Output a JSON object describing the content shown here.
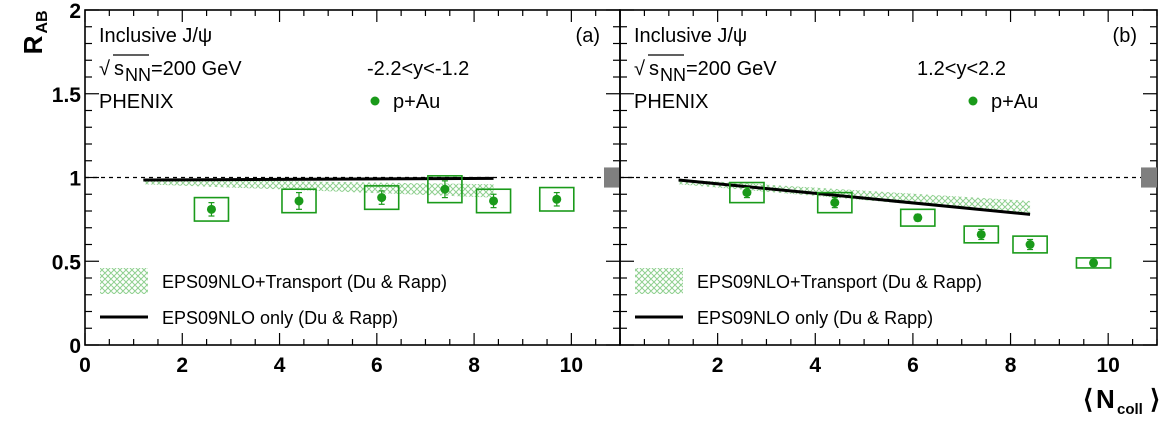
{
  "y_axis": {
    "label_main": "R",
    "label_sub": "AB"
  },
  "x_axis": {
    "label_main": "N",
    "label_sub": "coll"
  },
  "colors": {
    "data": "#1a9a1a",
    "band": "#8fd08f",
    "model": "#000000",
    "dashed": "#000000",
    "norm_box": "#7f7f7f"
  },
  "chart_data": [
    {
      "type": "scatter",
      "panel_tag": "(a)",
      "annotations": {
        "line1": "Inclusive J/ψ",
        "sqrt_symbol": "√",
        "energy_s": "s",
        "energy_sub": "NN",
        "energy_value": "=200 GeV",
        "experiment": "PHENIX",
        "rapidity": "-2.2<y<-1.2"
      },
      "xlim": [
        0,
        11
      ],
      "ylim": [
        0,
        2
      ],
      "x_ticks": [
        "0",
        "2",
        "4",
        "6",
        "8",
        "10"
      ],
      "y_ticks": [
        "0",
        "0.5",
        "1",
        "1.5",
        "2"
      ],
      "reference_line_y": 1.0,
      "global_uncertainty": [
        0.94,
        1.06
      ],
      "series": [
        {
          "name": "p+Au",
          "points": [
            {
              "x": 2.6,
              "y": 0.81,
              "stat": 0.04,
              "sys_x": 0.35,
              "sys_y": 0.07
            },
            {
              "x": 4.4,
              "y": 0.86,
              "stat": 0.05,
              "sys_x": 0.35,
              "sys_y": 0.07
            },
            {
              "x": 6.1,
              "y": 0.88,
              "stat": 0.04,
              "sys_x": 0.35,
              "sys_y": 0.07
            },
            {
              "x": 7.4,
              "y": 0.93,
              "stat": 0.05,
              "sys_x": 0.35,
              "sys_y": 0.08
            },
            {
              "x": 8.4,
              "y": 0.86,
              "stat": 0.04,
              "sys_x": 0.35,
              "sys_y": 0.07
            },
            {
              "x": 9.7,
              "y": 0.87,
              "stat": 0.04,
              "sys_x": 0.35,
              "sys_y": 0.07
            }
          ]
        }
      ],
      "models": [
        {
          "name": "EPS09NLO+Transport (Du & Rapp)",
          "kind": "band",
          "x": [
            1.2,
            8.4
          ],
          "y_low": [
            0.96,
            0.88
          ],
          "y_high": [
            0.99,
            0.96
          ]
        },
        {
          "name": "EPS09NLO only (Du & Rapp)",
          "kind": "line",
          "x": [
            1.2,
            8.4
          ],
          "y": [
            0.985,
            0.995
          ]
        }
      ]
    },
    {
      "type": "scatter",
      "panel_tag": "(b)",
      "annotations": {
        "line1": "Inclusive J/ψ",
        "sqrt_symbol": "√",
        "energy_s": "s",
        "energy_sub": "NN",
        "energy_value": "=200 GeV",
        "experiment": "PHENIX",
        "rapidity": "1.2<y<2.2"
      },
      "xlim": [
        0,
        11
      ],
      "ylim": [
        0,
        2
      ],
      "x_ticks": [
        "2",
        "4",
        "6",
        "8",
        "10"
      ],
      "y_ticks": [],
      "reference_line_y": 1.0,
      "global_uncertainty": [
        0.94,
        1.06
      ],
      "series": [
        {
          "name": "p+Au",
          "points": [
            {
              "x": 2.6,
              "y": 0.91,
              "stat": 0.03,
              "sys_x": 0.35,
              "sys_y": 0.06
            },
            {
              "x": 4.4,
              "y": 0.85,
              "stat": 0.03,
              "sys_x": 0.35,
              "sys_y": 0.06
            },
            {
              "x": 6.1,
              "y": 0.76,
              "stat": 0.02,
              "sys_x": 0.35,
              "sys_y": 0.05
            },
            {
              "x": 7.4,
              "y": 0.66,
              "stat": 0.03,
              "sys_x": 0.35,
              "sys_y": 0.05
            },
            {
              "x": 8.4,
              "y": 0.6,
              "stat": 0.03,
              "sys_x": 0.35,
              "sys_y": 0.05
            },
            {
              "x": 9.7,
              "y": 0.49,
              "stat": 0.02,
              "sys_x": 0.35,
              "sys_y": 0.03
            }
          ]
        }
      ],
      "models": [
        {
          "name": "EPS09NLO+Transport (Du & Rapp)",
          "kind": "band",
          "x": [
            1.2,
            8.4
          ],
          "y_low": [
            0.96,
            0.78
          ],
          "y_high": [
            0.99,
            0.86
          ]
        },
        {
          "name": "EPS09NLO only (Du & Rapp)",
          "kind": "line",
          "x": [
            1.2,
            8.4
          ],
          "y": [
            0.985,
            0.78
          ]
        }
      ]
    }
  ]
}
